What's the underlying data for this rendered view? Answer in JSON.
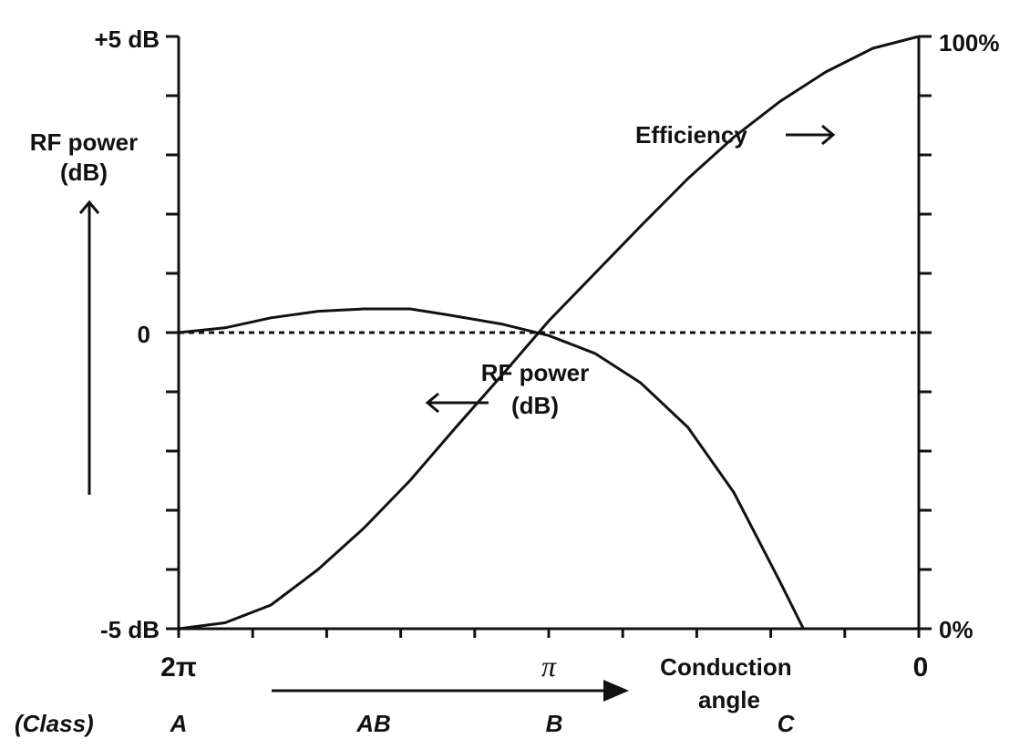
{
  "chart_data": {
    "type": "line",
    "x_axis": {
      "tick_labels": {
        "left": "2π",
        "middle": "π",
        "right": "0"
      },
      "range": [
        6.2832,
        0
      ],
      "label": "Conduction angle"
    },
    "y_axis_left": {
      "top_label": "+5 dB",
      "zero_label": "0",
      "bottom_label": "-5 dB",
      "range": [
        -5,
        5
      ],
      "title_line1": "RF power",
      "title_line2": "(dB)"
    },
    "y_axis_right": {
      "top_label": "100%",
      "bottom_label": "0%",
      "range": [
        0,
        100
      ]
    },
    "zero_reference_line": "dashed",
    "classes": {
      "header": "(Class)",
      "labels": [
        "A",
        "AB",
        "B",
        "C"
      ]
    },
    "series": [
      {
        "name": "Efficiency",
        "axis": "right",
        "x": [
          6.2832,
          5.89,
          5.5,
          5.1,
          4.71,
          4.32,
          3.93,
          3.53,
          3.14,
          2.75,
          2.36,
          1.96,
          1.57,
          1.18,
          0.79,
          0.39,
          0.0
        ],
        "values": [
          0,
          1,
          4,
          10,
          17,
          25,
          34,
          43,
          52,
          60,
          68,
          76,
          83,
          89,
          94,
          98,
          100
        ]
      },
      {
        "name": "RF power (dB)",
        "axis": "left",
        "x": [
          6.2832,
          5.89,
          5.5,
          5.1,
          4.71,
          4.32,
          4.0,
          3.53,
          3.14,
          2.75,
          2.36,
          1.96,
          1.57,
          1.18,
          0.98,
          0.85
        ],
        "values": [
          0,
          0.08,
          0.25,
          0.36,
          0.4,
          0.4,
          0.3,
          0.14,
          -0.05,
          -0.35,
          -0.85,
          -1.6,
          -2.7,
          -4.2,
          -5.0,
          -5.0
        ]
      }
    ],
    "annotations": {
      "efficiency_label": "Efficiency",
      "rf_label_line1": "RF power",
      "rf_label_line2": "(dB)"
    }
  }
}
